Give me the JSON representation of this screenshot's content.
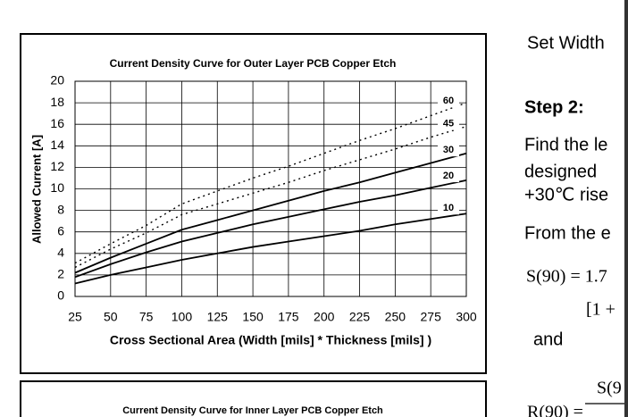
{
  "chart_data": {
    "type": "line",
    "title": "Current Density Curve for Outer Layer PCB Copper Etch",
    "x_label": "Cross Sectional Area (Width [mils] * Thickness [mils] )",
    "y_label": "Allowed Current [A]",
    "x": [
      25,
      50,
      75,
      100,
      125,
      150,
      175,
      200,
      225,
      250,
      275,
      300
    ],
    "series": [
      {
        "name": "10",
        "color": "#000000",
        "style": "solid",
        "values": [
          1.2,
          2.0,
          2.7,
          3.4,
          4.0,
          4.6,
          5.1,
          5.6,
          6.1,
          6.7,
          7.2,
          7.7
        ]
      },
      {
        "name": "20",
        "color": "#000000",
        "style": "solid",
        "values": [
          1.8,
          3.0,
          4.1,
          5.1,
          5.9,
          6.7,
          7.4,
          8.1,
          8.8,
          9.4,
          10.1,
          10.8
        ]
      },
      {
        "name": "30",
        "color": "#000000",
        "style": "solid",
        "values": [
          2.2,
          3.6,
          4.9,
          6.2,
          7.1,
          8.0,
          8.9,
          9.8,
          10.6,
          11.5,
          12.4,
          13.3
        ]
      },
      {
        "name": "45",
        "color": "#000000",
        "style": "dotted",
        "values": [
          2.7,
          4.4,
          5.9,
          7.6,
          8.6,
          9.6,
          10.6,
          11.7,
          12.7,
          13.7,
          14.8,
          15.8
        ]
      },
      {
        "name": "60",
        "color": "#000000",
        "style": "dotted",
        "values": [
          3.1,
          4.9,
          6.6,
          8.6,
          9.8,
          11.0,
          12.1,
          13.3,
          14.5,
          15.6,
          16.8,
          18.0
        ]
      }
    ],
    "xlim": [
      25,
      300
    ],
    "xticks": [
      25,
      50,
      75,
      100,
      125,
      150,
      175,
      200,
      225,
      250,
      275,
      300
    ],
    "ylim": [
      0,
      20
    ],
    "yticks": [
      0,
      2,
      4,
      6,
      8,
      10,
      12,
      14,
      16,
      18,
      20
    ],
    "grid": true
  },
  "document": {
    "second_chart_title": "Current Density Curve for Inner Layer PCB Copper Etch",
    "lines": [
      "Set Width",
      "Step 2:",
      "Find the le",
      "designed",
      "+30℃ rise",
      "From the e",
      "S(90) = 1.7",
      "[1 +",
      "and",
      "S(9",
      "R(90) ="
    ]
  }
}
